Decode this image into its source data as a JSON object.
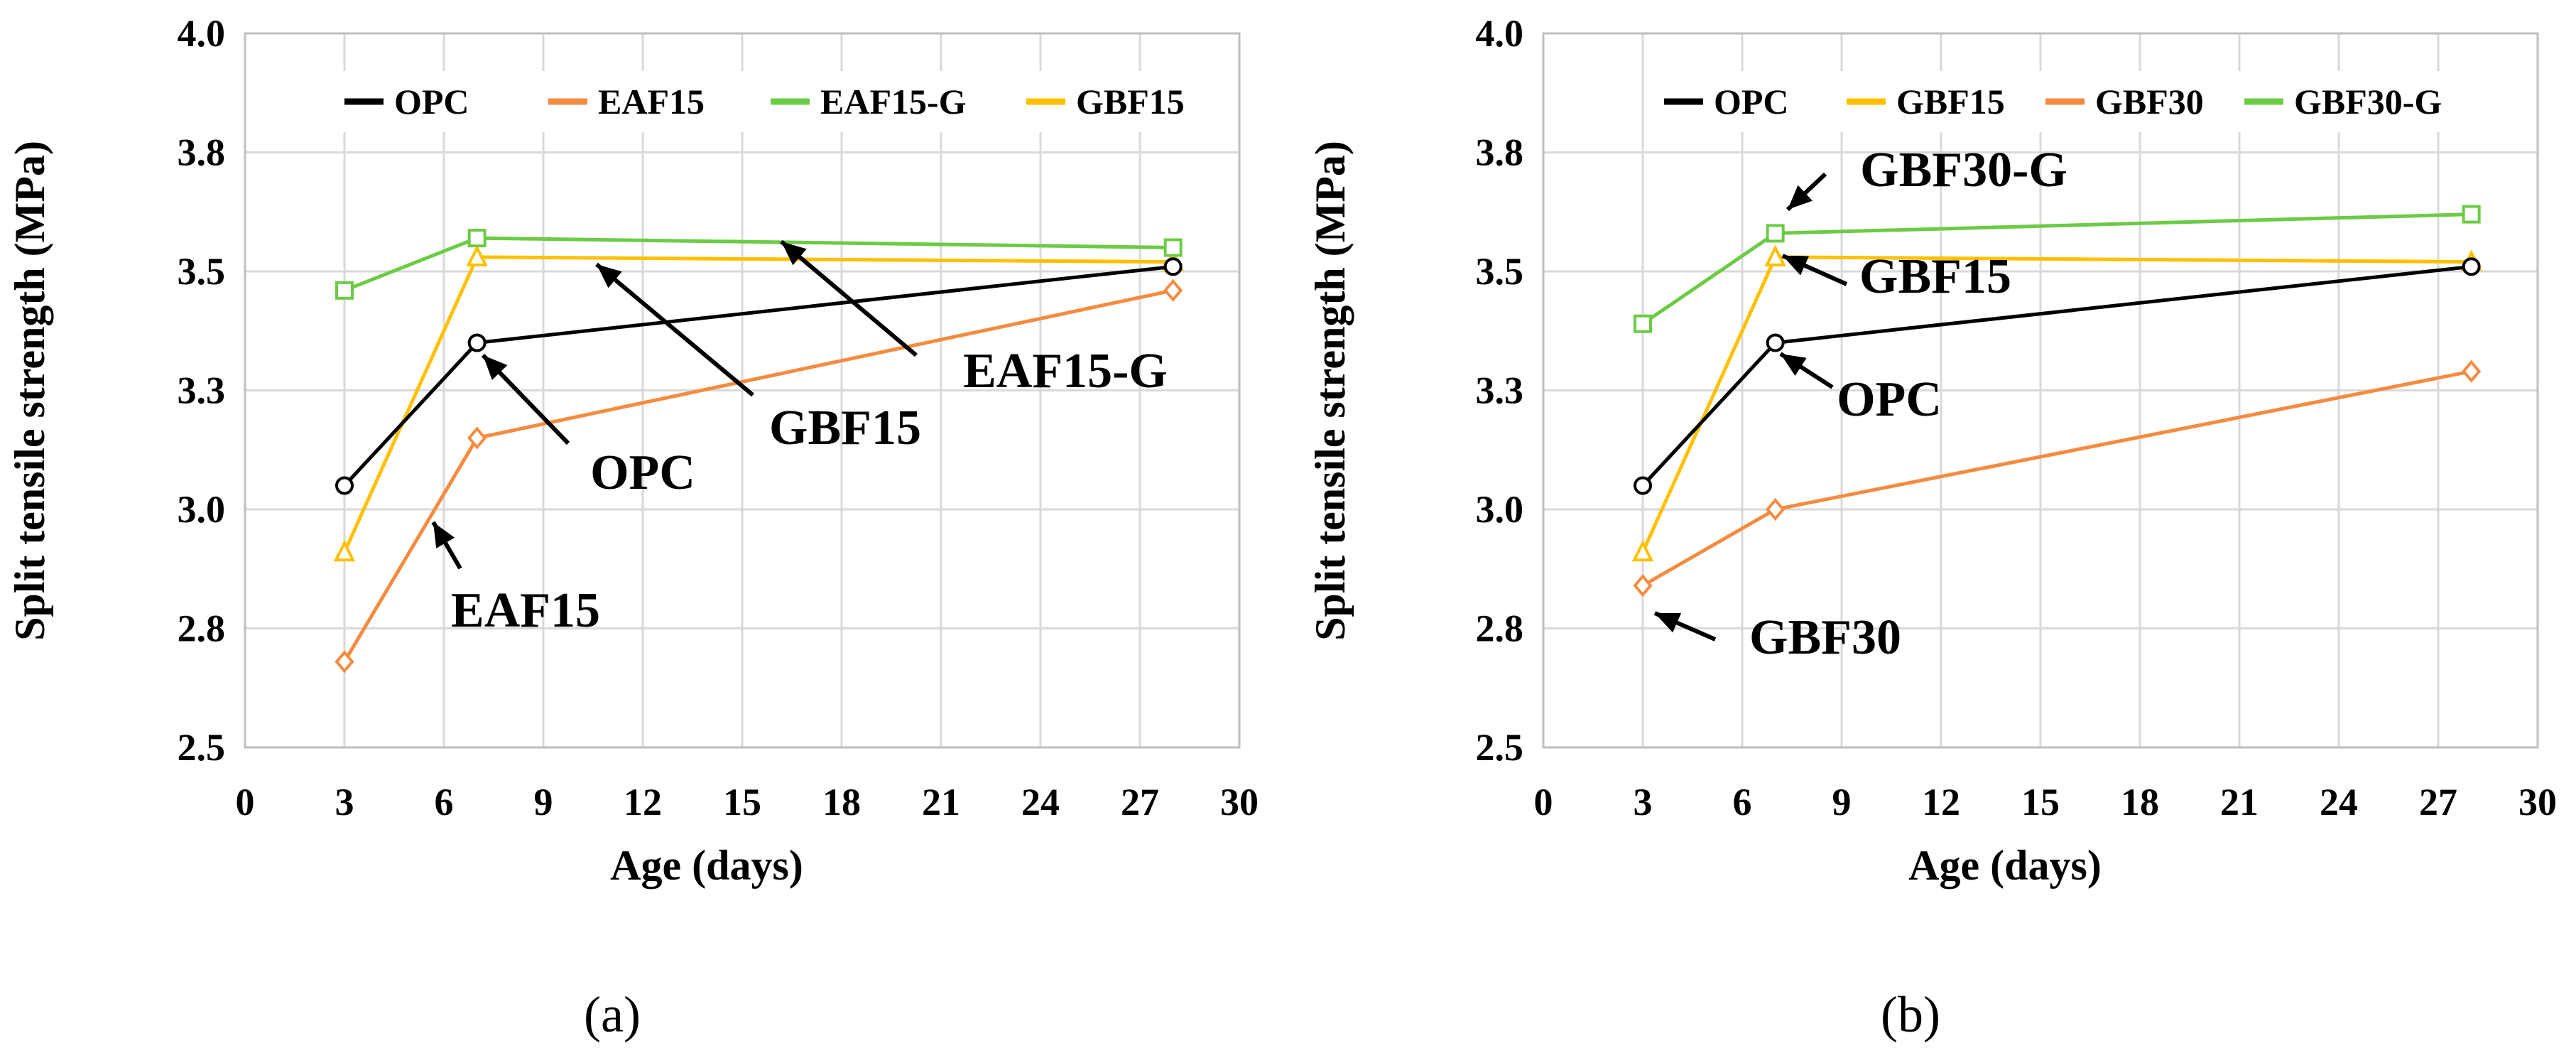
{
  "chart_data": [
    {
      "type": "line",
      "panel_label": "(a)",
      "xlabel": "Age (days)",
      "ylabel": "Split tensile strength (MPa)",
      "xlim": [
        0,
        30
      ],
      "ylim": [
        2.5,
        4.0
      ],
      "xticks": [
        0,
        3,
        6,
        9,
        12,
        15,
        18,
        21,
        24,
        27,
        30
      ],
      "yticks": [
        2.5,
        2.75,
        3.0,
        3.25,
        3.5,
        3.75,
        4.0
      ],
      "ytick_labels": [
        "2.5",
        "2.8",
        "3.0",
        "3.3",
        "3.5",
        "3.8",
        "4.0"
      ],
      "x": [
        3,
        7,
        28
      ],
      "series": [
        {
          "name": "OPC",
          "color": "#000000",
          "marker": "circle",
          "values": [
            3.05,
            3.35,
            3.51
          ]
        },
        {
          "name": "EAF15",
          "color": "#F58B3F",
          "marker": "diamond",
          "values": [
            2.68,
            3.15,
            3.46
          ]
        },
        {
          "name": "EAF15-G",
          "color": "#6CCB45",
          "marker": "square",
          "values": [
            3.46,
            3.57,
            3.55
          ]
        },
        {
          "name": "GBF15",
          "color": "#FFC000",
          "marker": "triangle",
          "values": [
            2.91,
            3.53,
            3.52
          ]
        }
      ],
      "legend": [
        "OPC",
        "EAF15",
        "EAF15-G",
        "GBF15"
      ],
      "annotations": [
        {
          "text": "OPC",
          "points_to": [
            7.3,
            3.33
          ]
        },
        {
          "text": "EAF15",
          "points_to": [
            6.1,
            2.99
          ]
        },
        {
          "text": "GBF15",
          "points_to": [
            10.5,
            3.52
          ]
        },
        {
          "text": "EAF15-G",
          "points_to": [
            16.5,
            3.56
          ]
        }
      ]
    },
    {
      "type": "line",
      "panel_label": "(b)",
      "xlabel": "Age (days)",
      "ylabel": "Split tensile strength (MPa)",
      "xlim": [
        0,
        30
      ],
      "ylim": [
        2.5,
        4.0
      ],
      "xticks": [
        0,
        3,
        6,
        9,
        12,
        15,
        18,
        21,
        24,
        27,
        30
      ],
      "yticks": [
        2.5,
        2.75,
        3.0,
        3.25,
        3.5,
        3.75,
        4.0
      ],
      "ytick_labels": [
        "2.5",
        "2.8",
        "3.0",
        "3.3",
        "3.5",
        "3.8",
        "4.0"
      ],
      "x": [
        3,
        7,
        28
      ],
      "series": [
        {
          "name": "OPC",
          "color": "#000000",
          "marker": "circle",
          "values": [
            3.05,
            3.35,
            3.51
          ]
        },
        {
          "name": "GBF15",
          "color": "#FFC000",
          "marker": "triangle",
          "values": [
            2.91,
            3.53,
            3.52
          ]
        },
        {
          "name": "GBF30",
          "color": "#F58B3F",
          "marker": "diamond",
          "values": [
            2.84,
            3.0,
            3.29
          ]
        },
        {
          "name": "GBF30-G",
          "color": "#6CCB45",
          "marker": "square",
          "values": [
            3.39,
            3.58,
            3.62
          ]
        }
      ],
      "legend": [
        "OPC",
        "GBF15",
        "GBF30",
        "GBF30-G"
      ],
      "annotations": [
        {
          "text": "GBF30-G",
          "points_to": [
            7.2,
            3.6
          ]
        },
        {
          "text": "GBF15",
          "points_to": [
            7.2,
            3.51
          ]
        },
        {
          "text": "OPC",
          "points_to": [
            7.2,
            3.33
          ]
        },
        {
          "text": "GBF30",
          "points_to": [
            3.2,
            2.83
          ]
        }
      ]
    }
  ]
}
